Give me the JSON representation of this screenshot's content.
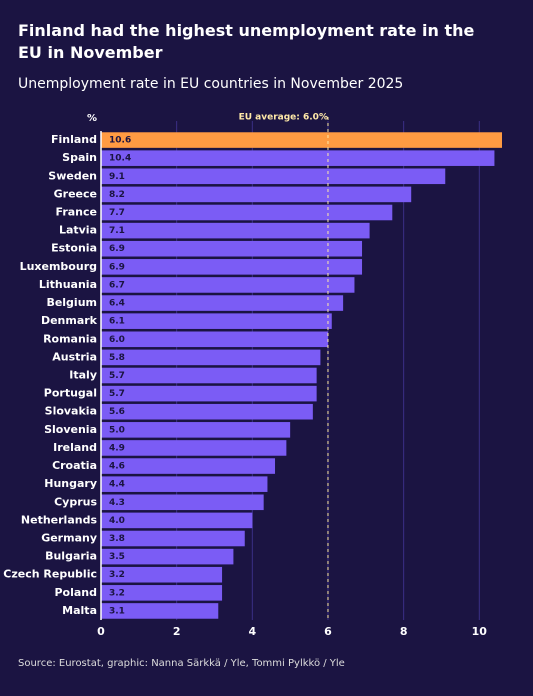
{
  "chart_data": {
    "type": "bar",
    "orientation": "horizontal",
    "title": "Finland had the highest unemployment rate in the EU in November",
    "subtitle": "Unemployment rate in EU countries in November 2025",
    "source": "Source: Eurostat, graphic: Nanna Särkkä / Yle, Tommi Pylkkö / Yle",
    "unit_label": "%",
    "categories": [
      "Finland",
      "Spain",
      "Sweden",
      "Greece",
      "France",
      "Latvia",
      "Estonia",
      "Luxembourg",
      "Lithuania",
      "Belgium",
      "Denmark",
      "Romania",
      "Austria",
      "Italy",
      "Portugal",
      "Slovakia",
      "Slovenia",
      "Ireland",
      "Croatia",
      "Hungary",
      "Cyprus",
      "Netherlands",
      "Germany",
      "Bulgaria",
      "Czech Republic",
      "Poland",
      "Malta"
    ],
    "values": [
      10.6,
      10.4,
      9.1,
      8.2,
      7.7,
      7.1,
      6.9,
      6.9,
      6.7,
      6.4,
      6.1,
      6.0,
      5.8,
      5.7,
      5.7,
      5.6,
      5.0,
      4.9,
      4.6,
      4.4,
      4.3,
      4.0,
      3.8,
      3.5,
      3.2,
      3.2,
      3.1
    ],
    "value_labels": [
      "10.6",
      "10.4",
      "9.1",
      "8.2",
      "7.7",
      "7.1",
      "6.9",
      "6.9",
      "6.7",
      "6.4",
      "6.1",
      "6.0",
      "5.8",
      "5.7",
      "5.7",
      "5.6",
      "5.0",
      "4.9",
      "4.6",
      "4.4",
      "4.3",
      "4.0",
      "3.8",
      "3.5",
      "3.2",
      "3.2",
      "3.1"
    ],
    "color": "#7b5cf5",
    "highlight_color": "#ff9b42",
    "highlight_index": 0,
    "xlim": [
      0,
      10.6
    ],
    "xticks": [
      0,
      2,
      4,
      6,
      8,
      10
    ],
    "grid": true,
    "reference": {
      "value": 6.0,
      "label": "EU average: 6.0%"
    }
  }
}
